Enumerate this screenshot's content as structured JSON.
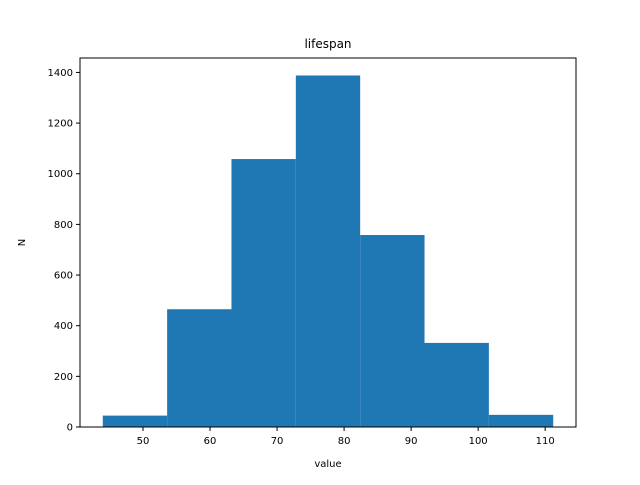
{
  "chart_data": {
    "type": "bar",
    "subtype": "histogram",
    "title": "lifespan",
    "xlabel": "value",
    "ylabel": "N",
    "bin_edges": [
      44.0,
      53.6,
      63.2,
      72.8,
      82.4,
      92.0,
      101.6,
      111.2
    ],
    "values": [
      45,
      465,
      1058,
      1388,
      758,
      332,
      48
    ],
    "xlim": [
      40.6,
      114.6
    ],
    "ylim": [
      0,
      1457
    ],
    "xticks": [
      50,
      60,
      70,
      80,
      90,
      100,
      110
    ],
    "yticks": [
      0,
      200,
      400,
      600,
      800,
      1000,
      1200,
      1400
    ],
    "bar_color": "#1f77b4",
    "grid": false,
    "legend": "none"
  }
}
